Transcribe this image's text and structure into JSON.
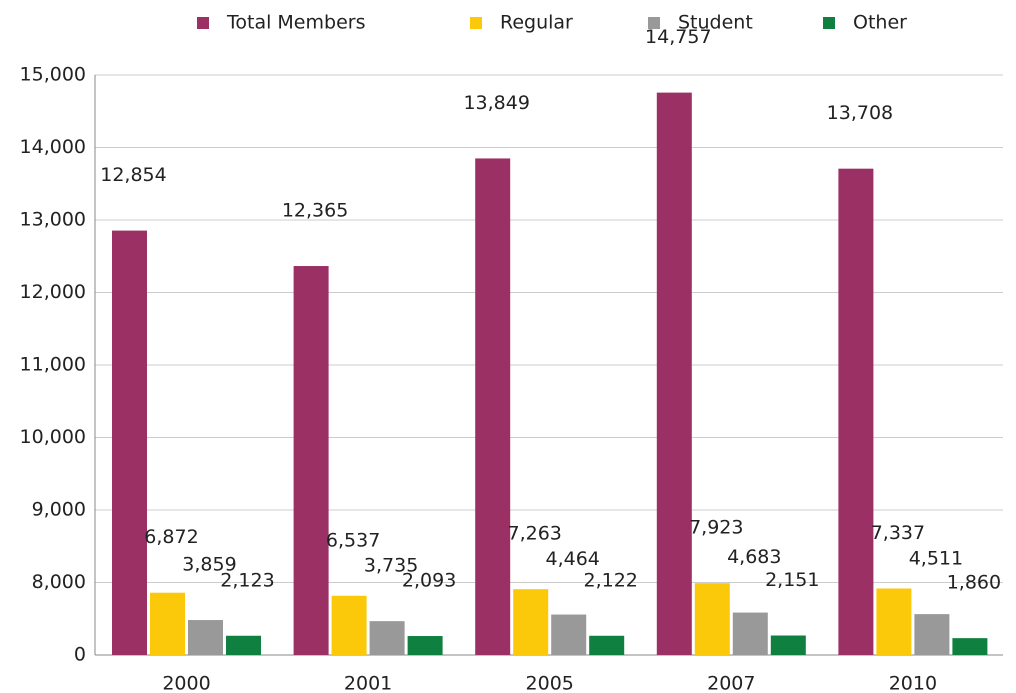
{
  "chart_data": {
    "type": "bar",
    "categories": [
      "2000",
      "2001",
      "2005",
      "2007",
      "2010"
    ],
    "series": [
      {
        "name": "Total Members",
        "color": "#9b3064",
        "values": [
          12854,
          12365,
          13849,
          14757,
          13708
        ],
        "value_labels": [
          "12,854",
          "12,365",
          "13,849",
          "14,757",
          "13,708"
        ]
      },
      {
        "name": "Regular",
        "color": "#fcc80a",
        "values": [
          6872,
          6537,
          7263,
          7923,
          7337
        ],
        "value_labels": [
          "6,872",
          "6,537",
          "7,263",
          "7,923",
          "7,337"
        ]
      },
      {
        "name": "Student",
        "color": "#999999",
        "values": [
          3859,
          3735,
          4464,
          4683,
          4511
        ],
        "value_labels": [
          "3,859",
          "3,735",
          "4,464",
          "4,683",
          "4,511"
        ]
      },
      {
        "name": "Other",
        "color": "#108040",
        "values": [
          2123,
          2093,
          2122,
          2151,
          1860
        ],
        "value_labels": [
          "2,123",
          "2,093",
          "2,122",
          "2,151",
          "1,860"
        ]
      }
    ],
    "ylim": [
      0,
      15000
    ],
    "yticks": [
      0,
      {
        "value": 8000,
        "label": "8,000"
      },
      {
        "value": 9000,
        "label": "9,000"
      },
      {
        "value": 10000,
        "label": "10,000"
      },
      {
        "value": 11000,
        "label": "11,000"
      },
      {
        "value": 12000,
        "label": "12,000"
      },
      {
        "value": 13000,
        "label": "13,000"
      },
      {
        "value": 14000,
        "label": "14,000"
      },
      {
        "value": 15000,
        "label": "15,000"
      }
    ],
    "grid": true,
    "legend": "top"
  }
}
